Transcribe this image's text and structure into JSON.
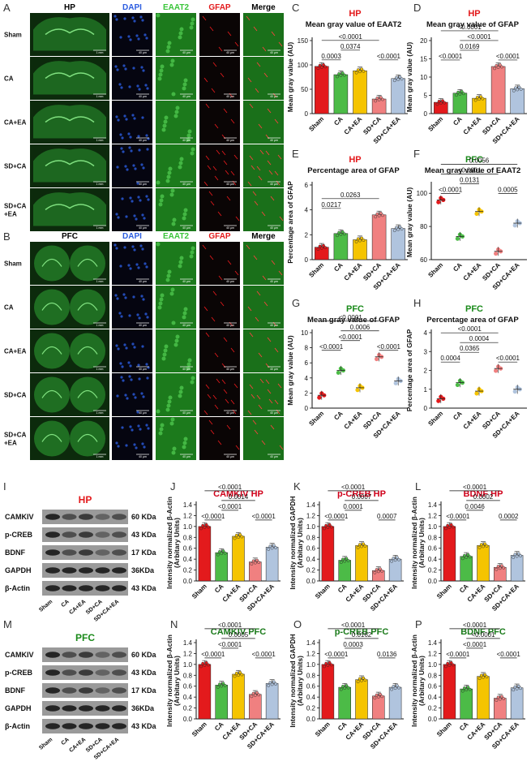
{
  "colors": {
    "sham": "#e31a1c",
    "ca": "#4cbb47",
    "caea": "#f5c400",
    "sdca": "#f08080",
    "sdcaea": "#b0c4de",
    "hp_title": "#e31a1c",
    "pfc_title": "#1a8a1a",
    "dapi": "#2b5ce0",
    "eaat2": "#39c539",
    "gfap": "#e31a1c"
  },
  "panel_letters": [
    "A",
    "B",
    "C",
    "D",
    "E",
    "F",
    "G",
    "H",
    "I",
    "J",
    "K",
    "L",
    "M",
    "N",
    "O",
    "P"
  ],
  "micrographs": {
    "A": {
      "region_label": "HP",
      "columns": [
        "HP",
        "DAPI",
        "EAAT2",
        "GFAP",
        "Merge"
      ],
      "rows": [
        "Sham",
        "CA",
        "CA+EA",
        "SD+CA",
        "SD+CA\n+EA"
      ],
      "scale_labels": [
        "1 mm",
        "40 μm",
        "40 μm",
        "40 μm",
        "40 μm"
      ]
    },
    "B": {
      "region_label": "PFC",
      "columns": [
        "PFC",
        "DAPI",
        "EAAT2",
        "GFAP",
        "Merge"
      ],
      "rows": [
        "Sham",
        "CA",
        "CA+EA",
        "SD+CA",
        "SD+CA\n+EA"
      ],
      "scale_labels": [
        "1 mm",
        "40 μm",
        "40 μm",
        "40 μm",
        "40 μm"
      ]
    }
  },
  "blots": {
    "I": {
      "title": "HP",
      "proteins": [
        "CAMKIV",
        "p-CREB",
        "BDNF",
        "GAPDH",
        "β-Actin"
      ],
      "kdas": [
        "60 KDa",
        "43 KDa",
        "17 KDa",
        "36KDa",
        "43 KDa"
      ],
      "lanes": [
        "Sham",
        "CA",
        "CA+EA",
        "SD+CA",
        "SD+CA+EA"
      ]
    },
    "M": {
      "title": "PFC",
      "proteins": [
        "CAMKIV",
        "p-CREB",
        "BDNF",
        "GAPDH",
        "β-Actin"
      ],
      "kdas": [
        "60 KDa",
        "43 KDa",
        "17 KDa",
        "36KDa",
        "43 KDa"
      ],
      "lanes": [
        "Sham",
        "CA",
        "CA+EA",
        "SD+CA",
        "SD+CA+EA"
      ]
    }
  },
  "chart_data": [
    {
      "panel": "C",
      "type": "bar",
      "title": "HP",
      "subtitle": "Mean gray value of EAAT2",
      "ylabel": "Mean gray value (AU)",
      "ylim": [
        0,
        150
      ],
      "yticks": [
        "0",
        "50",
        "100",
        "150"
      ],
      "categories": [
        "Sham",
        "CA",
        "CA+EA",
        "SD+CA",
        "SD+CA+EA"
      ],
      "values": [
        97,
        80,
        88,
        30,
        72
      ],
      "comparisons": [
        {
          "a": 0,
          "b": 1,
          "label": "0.0003"
        },
        {
          "a": 1,
          "b": 2,
          "label": "0.0374"
        },
        {
          "a": 0,
          "b": 3,
          "label": "<0.0001"
        },
        {
          "a": 3,
          "b": 4,
          "label": "<0.0001"
        }
      ]
    },
    {
      "panel": "D",
      "type": "bar",
      "title": "HP",
      "subtitle": "Mean gray value of GFAP",
      "ylabel": "Mean gray value (AU)",
      "ylim": [
        0,
        20
      ],
      "yticks": [
        "0",
        "5",
        "10",
        "15",
        "20"
      ],
      "categories": [
        "Sham",
        "CA",
        "CA+EA",
        "SD+CA",
        "SD+CA+EA"
      ],
      "values": [
        3.1,
        5.6,
        4.2,
        12.9,
        6.8
      ],
      "comparisons": [
        {
          "a": 0,
          "b": 1,
          "label": "<0.0001"
        },
        {
          "a": 1,
          "b": 2,
          "label": "0.0169"
        },
        {
          "a": 1,
          "b": 3,
          "label": "<0.0001"
        },
        {
          "a": 0,
          "b": 3,
          "label": "<0.0001"
        },
        {
          "a": 3,
          "b": 4,
          "label": "<0.0001"
        }
      ]
    },
    {
      "panel": "E",
      "type": "bar",
      "title": "HP",
      "subtitle": "Percentage area of GFAP",
      "ylabel": "Percentage area of GFAP",
      "ylim": [
        0,
        6
      ],
      "yticks": [
        "0",
        "2",
        "4",
        "6"
      ],
      "categories": [
        "Sham",
        "CA",
        "CA+EA",
        "SD+CA",
        "SD+CA+EA"
      ],
      "values": [
        1.0,
        2.1,
        1.6,
        3.6,
        2.5
      ],
      "comparisons": [
        {
          "a": 0,
          "b": 1,
          "label": "0.0217"
        },
        {
          "a": 0,
          "b": 3,
          "label": "0.0263"
        }
      ]
    },
    {
      "panel": "F",
      "type": "scatter",
      "title": "PFC",
      "subtitle": "Mean gray value of EAAT2",
      "ylabel": "Mean gray value (AU)",
      "ylim": [
        60,
        105
      ],
      "yticks": [
        "60",
        "80",
        "100"
      ],
      "categories": [
        "Sham",
        "CA",
        "CA+EA",
        "SD+CA",
        "SD+CA+EA"
      ],
      "values": [
        96,
        74,
        89,
        65,
        82
      ],
      "comparisons": [
        {
          "a": 0,
          "b": 1,
          "label": "<0.0001"
        },
        {
          "a": 1,
          "b": 2,
          "label": "0.0131"
        },
        {
          "a": 0,
          "b": 3,
          "label": "<0.0001"
        },
        {
          "a": 0,
          "b": 4,
          "label": "0.0056"
        },
        {
          "a": 3,
          "b": 4,
          "label": "0.0005"
        }
      ]
    },
    {
      "panel": "G",
      "type": "scatter",
      "title": "PFC",
      "subtitle": "Mean gray value of GFAP",
      "ylabel": "Mean gray value (AU)",
      "ylim": [
        0,
        10
      ],
      "yticks": [
        "0",
        "2",
        "4",
        "6",
        "8",
        "10"
      ],
      "categories": [
        "Sham",
        "CA",
        "CA+EA",
        "SD+CA",
        "SD+CA+EA"
      ],
      "values": [
        1.7,
        5.0,
        2.7,
        6.8,
        3.6
      ],
      "comparisons": [
        {
          "a": 0,
          "b": 1,
          "label": "<0.0001"
        },
        {
          "a": 1,
          "b": 2,
          "label": "<0.0001"
        },
        {
          "a": 0,
          "b": 3,
          "label": "<0.0001"
        },
        {
          "a": 1,
          "b": 3,
          "label": "0.0006"
        },
        {
          "a": 3,
          "b": 4,
          "label": "<0.0001"
        }
      ]
    },
    {
      "panel": "H",
      "type": "scatter",
      "title": "PFC",
      "subtitle": "Percentage area of GFAP",
      "ylabel": "Percentage area of GFAP",
      "ylim": [
        0,
        4
      ],
      "yticks": [
        "0",
        "1",
        "2",
        "3",
        "4"
      ],
      "categories": [
        "Sham",
        "CA",
        "CA+EA",
        "SD+CA",
        "SD+CA+EA"
      ],
      "values": [
        0.5,
        1.35,
        0.9,
        2.1,
        1.0
      ],
      "comparisons": [
        {
          "a": 0,
          "b": 1,
          "label": "0.0004"
        },
        {
          "a": 1,
          "b": 2,
          "label": "0.0365"
        },
        {
          "a": 0,
          "b": 3,
          "label": "<0.0001"
        },
        {
          "a": 1,
          "b": 3,
          "label": "0.0004"
        },
        {
          "a": 3,
          "b": 4,
          "label": "<0.0001"
        }
      ]
    },
    {
      "panel": "J",
      "type": "bar",
      "title": "CAMKIV HP",
      "subtitle": "",
      "ylabel": "Intensity normalized β-Actin\n(Arbitary Units)",
      "ylim": [
        0,
        1.4
      ],
      "yticks": [
        "0.0",
        "0.2",
        "0.4",
        "0.6",
        "0.8",
        "1.0",
        "1.2",
        "1.4"
      ],
      "categories": [
        "Sham",
        "CA",
        "CA+EA",
        "SD+CA",
        "SD+CA+EA"
      ],
      "values": [
        1.0,
        0.52,
        0.82,
        0.35,
        0.62
      ],
      "comparisons": [
        {
          "a": 0,
          "b": 1,
          "label": "<0.0001"
        },
        {
          "a": 1,
          "b": 2,
          "label": "<0.0001"
        },
        {
          "a": 1,
          "b": 3,
          "label": "0.0014"
        },
        {
          "a": 0,
          "b": 3,
          "label": "<0.0001"
        },
        {
          "a": 3,
          "b": 4,
          "label": "<0.0001"
        }
      ]
    },
    {
      "panel": "K",
      "type": "bar",
      "title": "p-CREB HP",
      "subtitle": "",
      "ylabel": "Intensity normalized GAPDH\n(Arbitary Units)",
      "ylim": [
        0,
        1.4
      ],
      "yticks": [
        "0.0",
        "0.2",
        "0.4",
        "0.6",
        "0.8",
        "1.0",
        "1.2",
        "1.4"
      ],
      "categories": [
        "Sham",
        "CA",
        "CA+EA",
        "SD+CA",
        "SD+CA+EA"
      ],
      "values": [
        1.0,
        0.38,
        0.65,
        0.19,
        0.4
      ],
      "comparisons": [
        {
          "a": 0,
          "b": 1,
          "label": "<0.0001"
        },
        {
          "a": 1,
          "b": 2,
          "label": "0.0001"
        },
        {
          "a": 1,
          "b": 3,
          "label": "0.0007"
        },
        {
          "a": 0,
          "b": 3,
          "label": "<0.0001"
        },
        {
          "a": 3,
          "b": 4,
          "label": "0.0007"
        }
      ]
    },
    {
      "panel": "L",
      "type": "bar",
      "title": "BDNF HP",
      "subtitle": "",
      "ylabel": "Intensity normalized β-Actin\n(Arbitary Units)",
      "ylim": [
        0,
        1.4
      ],
      "yticks": [
        "0.0",
        "0.2",
        "0.4",
        "0.6",
        "0.8",
        "1.0",
        "1.2",
        "1.4"
      ],
      "categories": [
        "Sham",
        "CA",
        "CA+EA",
        "SD+CA",
        "SD+CA+EA"
      ],
      "values": [
        1.0,
        0.45,
        0.65,
        0.25,
        0.47
      ],
      "comparisons": [
        {
          "a": 0,
          "b": 1,
          "label": "<0.0001"
        },
        {
          "a": 1,
          "b": 2,
          "label": "0.0046"
        },
        {
          "a": 1,
          "b": 3,
          "label": "0.0002"
        },
        {
          "a": 0,
          "b": 3,
          "label": "<0.0001"
        },
        {
          "a": 3,
          "b": 4,
          "label": "0.0002"
        }
      ]
    },
    {
      "panel": "N",
      "type": "bar",
      "title": "CAMKIV PFC",
      "subtitle": "",
      "ylabel": "Intensity normalized β-Actin\n(Arbitary Units)",
      "ylim": [
        0,
        1.4
      ],
      "yticks": [
        "0.0",
        "0.2",
        "0.4",
        "0.6",
        "0.8",
        "1.0",
        "1.2",
        "1.4"
      ],
      "categories": [
        "Sham",
        "CA",
        "CA+EA",
        "SD+CA",
        "SD+CA+EA"
      ],
      "values": [
        1.0,
        0.62,
        0.82,
        0.45,
        0.65
      ],
      "comparisons": [
        {
          "a": 0,
          "b": 1,
          "label": "<0.0001"
        },
        {
          "a": 1,
          "b": 2,
          "label": "<0.0001"
        },
        {
          "a": 1,
          "b": 3,
          "label": "0.0005"
        },
        {
          "a": 0,
          "b": 3,
          "label": "<0.0001"
        },
        {
          "a": 3,
          "b": 4,
          "label": "<0.0001"
        }
      ]
    },
    {
      "panel": "O",
      "type": "bar",
      "title": "p-CREB PFC",
      "subtitle": "",
      "ylabel": "Intensity normalized GAPDH\n(Arbitary Units)",
      "ylim": [
        0,
        1.4
      ],
      "yticks": [
        "0.0",
        "0.2",
        "0.4",
        "0.6",
        "0.8",
        "1.0",
        "1.2",
        "1.4"
      ],
      "categories": [
        "Sham",
        "CA",
        "CA+EA",
        "SD+CA",
        "SD+CA+EA"
      ],
      "values": [
        1.0,
        0.58,
        0.72,
        0.42,
        0.58
      ],
      "comparisons": [
        {
          "a": 0,
          "b": 1,
          "label": "<0.0001"
        },
        {
          "a": 1,
          "b": 2,
          "label": "0.0003"
        },
        {
          "a": 1,
          "b": 3,
          "label": "0.0162"
        },
        {
          "a": 0,
          "b": 3,
          "label": "<0.0001"
        },
        {
          "a": 3,
          "b": 4,
          "label": "0.0136"
        }
      ]
    },
    {
      "panel": "P",
      "type": "bar",
      "title": "BDNF PFC",
      "subtitle": "",
      "ylabel": "Intensity normalized β-Actin\n(Arbitary Units)",
      "ylim": [
        0,
        1.4
      ],
      "yticks": [
        "0.0",
        "0.2",
        "0.4",
        "0.6",
        "0.8",
        "1.0",
        "1.2",
        "1.4"
      ],
      "categories": [
        "Sham",
        "CA",
        "CA+EA",
        "SD+CA",
        "SD+CA+EA"
      ],
      "values": [
        1.0,
        0.55,
        0.78,
        0.38,
        0.57
      ],
      "comparisons": [
        {
          "a": 0,
          "b": 1,
          "label": "<0.0001"
        },
        {
          "a": 1,
          "b": 2,
          "label": "<0.0001"
        },
        {
          "a": 1,
          "b": 3,
          "label": "<0.0001"
        },
        {
          "a": 0,
          "b": 3,
          "label": "<0.0001"
        },
        {
          "a": 3,
          "b": 4,
          "label": "<0.0001"
        }
      ]
    }
  ]
}
